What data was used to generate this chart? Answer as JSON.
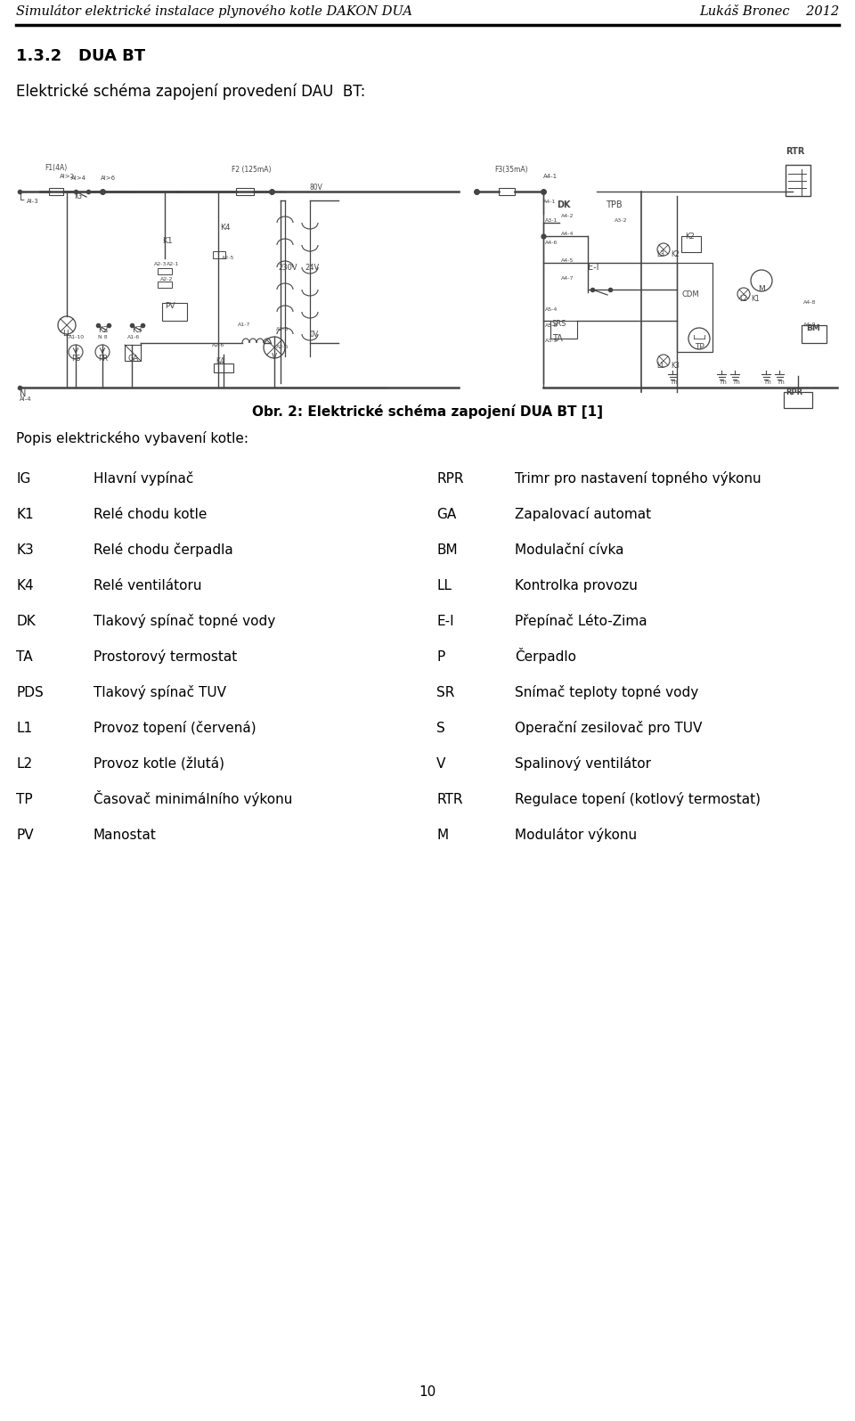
{
  "header_left": "Simulátor elektrické instalace plynového kotle DAKON DUA",
  "header_right": "Lukáš Bronec    2012",
  "section_title": "1.3.2   DUA BT",
  "intro_text": "Elektrické schéma zapojení provedení DAU  BT:",
  "figure_caption": "Obr. 2: Elektrické schéma zapojení DUA BT [1]",
  "popis_title": "Popis elektrického vybavení kotle:",
  "footer_page": "10",
  "left_items": [
    [
      "IG",
      "Hlavní vypínač"
    ],
    [
      "K1",
      "Relé chodu kotle"
    ],
    [
      "K3",
      "Relé chodu čerpadla"
    ],
    [
      "K4",
      "Relé ventilátoru"
    ],
    [
      "DK",
      "Tlakový spínač topné vody"
    ],
    [
      "TA",
      "Prostorový termostat"
    ],
    [
      "PDS",
      "Tlakový spínač TUV"
    ],
    [
      "L1",
      "Provoz topení (červená)"
    ],
    [
      "L2",
      "Provoz kotle (žlutá)"
    ],
    [
      "TP",
      "Časovač minimálního výkonu"
    ],
    [
      "PV",
      "Manostat"
    ]
  ],
  "right_items": [
    [
      "RPR",
      "Trimr pro nastavení topného výkonu"
    ],
    [
      "GA",
      "Zapalovací automat"
    ],
    [
      "BM",
      "Modulační cívka"
    ],
    [
      "LL",
      "Kontrolka provozu"
    ],
    [
      "E-I",
      "Přepínač Léto-Zima"
    ],
    [
      "P",
      "Čerpadlo"
    ],
    [
      "SR",
      "Snímač teploty topné vody"
    ],
    [
      "S",
      "Operační zesilovač pro TUV"
    ],
    [
      "V",
      "Spalinový ventilátor"
    ],
    [
      "RTR",
      "Regulace topení (kotlový termostat)"
    ],
    [
      "M",
      "Modulátor výkonu"
    ]
  ],
  "bg_color": "#ffffff",
  "text_color": "#000000",
  "schematic_color": "#444444",
  "header_line_color": "#000000",
  "header_fontsize": 10.5,
  "section_fontsize": 13,
  "intro_fontsize": 12,
  "caption_fontsize": 11,
  "popis_fontsize": 11,
  "item_fontsize": 11,
  "footer_fontsize": 11,
  "schematic_fontsize": 6.5
}
